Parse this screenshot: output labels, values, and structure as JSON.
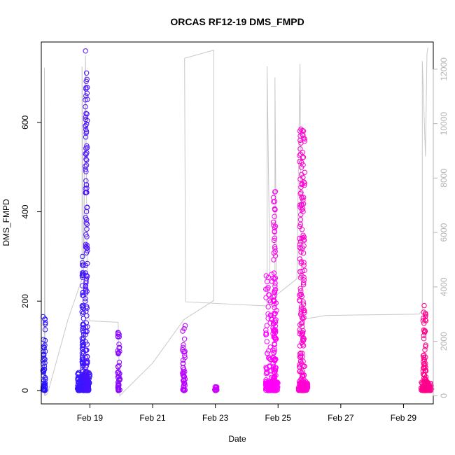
{
  "chart_data": {
    "type": "scatter",
    "title": "ORCAS RF12-19 DMS_FMPD",
    "xlabel": "Date",
    "ylabel": "DMS_FMPD",
    "xlim": [
      17.45,
      29.95
    ],
    "ylim": [
      -30,
      780
    ],
    "x_ticks": [
      {
        "value": 19,
        "label": "Feb 19"
      },
      {
        "value": 21,
        "label": "Feb 21"
      },
      {
        "value": 23,
        "label": "Feb 23"
      },
      {
        "value": 25,
        "label": "Feb 25"
      },
      {
        "value": 27,
        "label": "Feb 27"
      },
      {
        "value": 29,
        "label": "Feb 29"
      }
    ],
    "y_ticks": [
      0,
      200,
      400,
      600
    ],
    "y2_ticks": [
      0,
      2000,
      4000,
      6000,
      8000,
      10000,
      12000
    ],
    "y2lim": [
      -300,
      13000
    ],
    "colors": {
      "line": "#c8c8c8",
      "axis_right": "#b3b3b3",
      "series": [
        "#2a14ff",
        "#4a10ff",
        "#6a0cff",
        "#9b06ff",
        "#c400ff",
        "#ff00ff",
        "#ff00c8",
        "#ff0080"
      ]
    },
    "secondary_line": [
      [
        17.55,
        0
      ],
      [
        17.55,
        12050
      ],
      [
        17.57,
        0
      ],
      [
        17.65,
        80
      ],
      [
        18.3,
        2800
      ],
      [
        18.75,
        4300
      ],
      [
        18.75,
        12100
      ],
      [
        18.8,
        4400
      ],
      [
        18.86,
        12500
      ],
      [
        18.92,
        3000
      ],
      [
        19.0,
        2750
      ],
      [
        19.9,
        2700
      ],
      [
        19.95,
        0
      ],
      [
        21.0,
        1200
      ],
      [
        22.0,
        2800
      ],
      [
        22.95,
        3500
      ],
      [
        22.95,
        12700
      ],
      [
        22.02,
        12400
      ],
      [
        22.05,
        3450
      ],
      [
        24.65,
        3300
      ],
      [
        24.65,
        12100
      ],
      [
        24.75,
        3400
      ],
      [
        24.9,
        3600
      ],
      [
        24.9,
        11700
      ],
      [
        24.95,
        3700
      ],
      [
        25.6,
        4300
      ],
      [
        25.7,
        12200
      ],
      [
        25.75,
        2800
      ],
      [
        26.5,
        2950
      ],
      [
        29.5,
        3000
      ],
      [
        29.6,
        3150
      ],
      [
        29.6,
        12300
      ],
      [
        29.7,
        8800
      ],
      [
        29.75,
        12600
      ],
      [
        29.78,
        12800
      ]
    ],
    "series": [
      {
        "x_min": 17.5,
        "x_max": 17.58,
        "y_min": 0,
        "y_max": 165,
        "n": 60,
        "color": "#2a14ff"
      },
      {
        "x_min": 18.6,
        "x_max": 19.0,
        "y_min": 0,
        "y_max": 40,
        "n": 140,
        "color": "#3a16ff"
      },
      {
        "x_min": 18.75,
        "x_max": 18.8,
        "y_min": 0,
        "y_max": 300,
        "n": 80,
        "color": "#3a16ff"
      },
      {
        "x_min": 18.85,
        "x_max": 18.92,
        "y_min": 0,
        "y_max": 760,
        "n": 130,
        "color": "#4a10ff"
      },
      {
        "x_min": 19.88,
        "x_max": 19.96,
        "y_min": 0,
        "y_max": 130,
        "n": 50,
        "color": "#8a0aff"
      },
      {
        "x_min": 21.95,
        "x_max": 22.04,
        "y_min": 0,
        "y_max": 145,
        "n": 45,
        "color": "#b800ff"
      },
      {
        "x_min": 22.95,
        "x_max": 23.05,
        "y_min": 0,
        "y_max": 8,
        "n": 15,
        "color": "#d000ff"
      },
      {
        "x_min": 24.6,
        "x_max": 25.0,
        "y_min": 0,
        "y_max": 20,
        "n": 100,
        "color": "#ff00ff"
      },
      {
        "x_min": 24.6,
        "x_max": 24.95,
        "y_min": 0,
        "y_max": 260,
        "n": 110,
        "color": "#ff00ff"
      },
      {
        "x_min": 24.85,
        "x_max": 24.92,
        "y_min": 0,
        "y_max": 445,
        "n": 80,
        "color": "#ff00f0"
      },
      {
        "x_min": 25.65,
        "x_max": 25.95,
        "y_min": 0,
        "y_max": 20,
        "n": 80,
        "color": "#ff00d8"
      },
      {
        "x_min": 25.68,
        "x_max": 25.85,
        "y_min": 0,
        "y_max": 585,
        "n": 170,
        "color": "#ff00d0"
      },
      {
        "x_min": 29.55,
        "x_max": 29.9,
        "y_min": 0,
        "y_max": 20,
        "n": 80,
        "color": "#ff0090"
      },
      {
        "x_min": 29.62,
        "x_max": 29.72,
        "y_min": 0,
        "y_max": 190,
        "n": 60,
        "color": "#ff0088"
      }
    ]
  }
}
